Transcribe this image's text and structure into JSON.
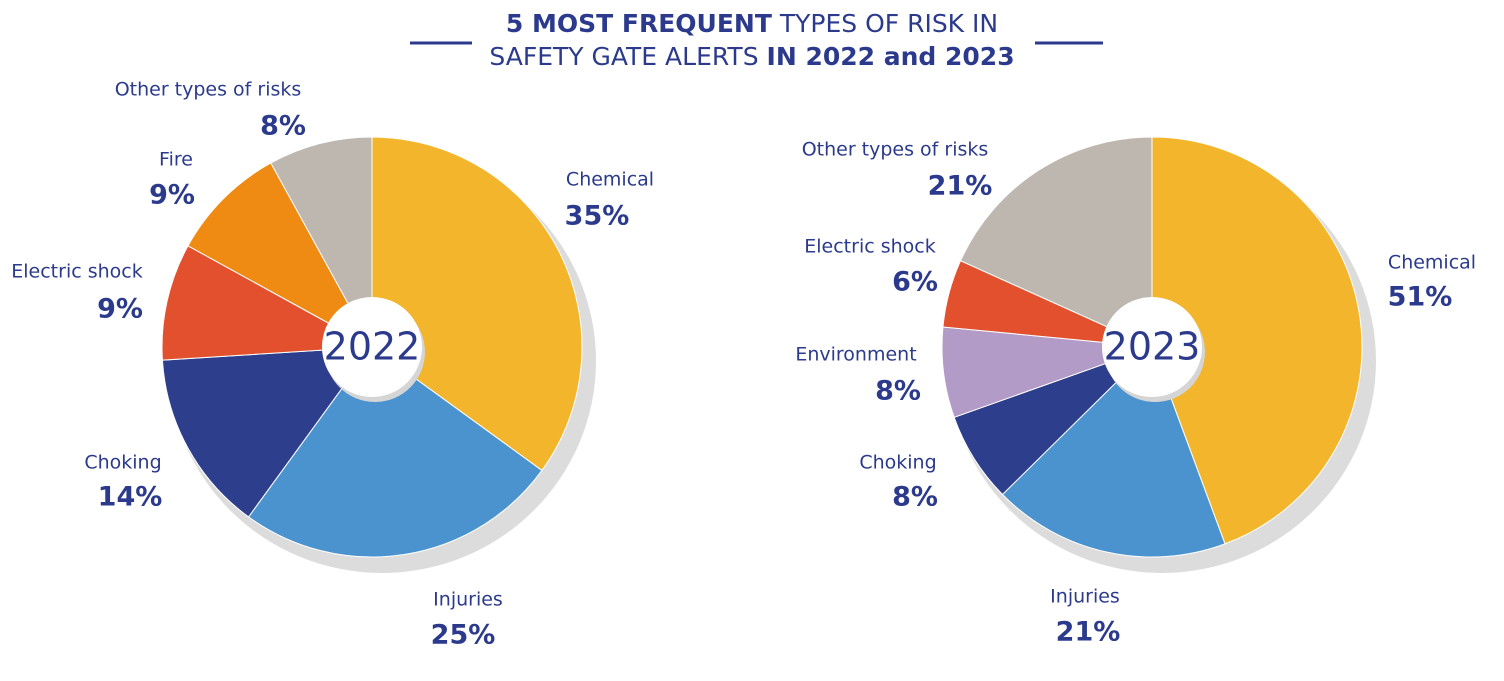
{
  "header": {
    "title_parts": [
      "5 MOST FREQUENT",
      " TYPES OF RISK IN",
      "SAFETY GATE ALERTS ",
      "IN 2022 and 2023"
    ]
  },
  "chart_data": [
    {
      "type": "pie",
      "title": "2022",
      "categories": [
        "Chemical",
        "Injuries",
        "Choking",
        "Electric shock",
        "Fire",
        "Other types of risks"
      ],
      "values": [
        35,
        25,
        14,
        9,
        9,
        8
      ],
      "value_labels": [
        "35%",
        "25%",
        "14%",
        "9%",
        "9%",
        "8%"
      ],
      "colors": [
        "#f2b52b",
        "#4a93cf",
        "#2c3e8c",
        "#e2502e",
        "#ef8a12",
        "#bdb7b0"
      ]
    },
    {
      "type": "pie",
      "title": "2023",
      "categories": [
        "Chemical",
        "Injuries",
        "Choking",
        "Environment",
        "Electric shock",
        "Other types of risks"
      ],
      "values": [
        51,
        21,
        8,
        8,
        6,
        21
      ],
      "value_labels": [
        "51%",
        "21%",
        "8%",
        "8%",
        "6%",
        "21%"
      ],
      "colors": [
        "#f2b52b",
        "#4a93cf",
        "#2c3e8c",
        "#b39bc8",
        "#e2502e",
        "#bdb7b0"
      ]
    }
  ]
}
